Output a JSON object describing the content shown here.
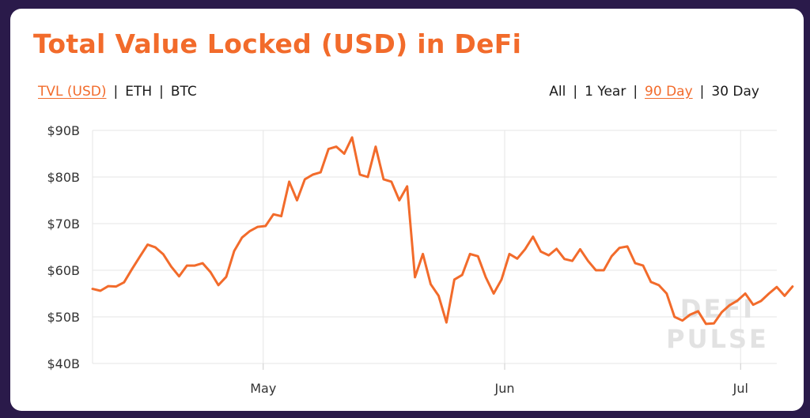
{
  "title": "Total Value Locked (USD) in DeFi",
  "metric_tabs": [
    {
      "label": "TVL (USD)",
      "active": true
    },
    {
      "label": "ETH",
      "active": false
    },
    {
      "label": "BTC",
      "active": false
    }
  ],
  "range_tabs": [
    {
      "label": "All",
      "active": false
    },
    {
      "label": "1 Year",
      "active": false
    },
    {
      "label": "90 Day",
      "active": true
    },
    {
      "label": "30 Day",
      "active": false
    }
  ],
  "watermark": {
    "line1": "DEFI",
    "line2": "PULSE"
  },
  "colors": {
    "accent": "#f26b2b",
    "background": "#2a1a4a",
    "grid": "#e6e6e6"
  },
  "chart_data": {
    "type": "line",
    "title": "Total Value Locked (USD) in DeFi",
    "xlabel": "",
    "ylabel": "",
    "ylim": [
      40,
      90
    ],
    "ytick_values": [
      40,
      50,
      60,
      70,
      80,
      90
    ],
    "ytick_labels": [
      "$40B",
      "$50B",
      "$60B",
      "$70B",
      "$80B",
      "$90B"
    ],
    "xlim": [
      0,
      87
    ],
    "xtick_positions": [
      21.7,
      52.4,
      82.4
    ],
    "xtick_labels": [
      "May",
      "Jun",
      "Jul"
    ],
    "grid": true,
    "legend": "none",
    "series": [
      {
        "values": [
          56.0,
          55.6,
          56.6,
          56.5,
          57.4,
          60.2,
          62.9,
          65.5,
          64.9,
          63.4,
          60.8,
          58.7,
          61.0,
          61.0,
          61.5,
          59.6,
          56.8,
          58.6,
          64.1,
          67.0,
          68.4,
          69.3,
          69.5,
          72.0,
          71.6,
          79.0,
          75.0,
          79.5,
          80.5,
          81.0,
          86.0,
          86.5,
          85.0,
          88.5,
          80.5,
          80.0,
          86.5,
          79.5,
          79.0,
          75.0,
          78.0,
          58.5,
          63.5,
          57.0,
          54.5,
          48.8,
          58.0,
          59.0,
          63.5,
          63.0,
          58.5,
          55.0,
          58.0,
          63.5,
          62.5,
          64.5,
          67.2,
          64.0,
          63.2,
          64.6,
          62.4,
          62.0,
          64.5,
          62.0,
          60.0,
          60.0,
          63.0,
          64.8,
          65.1,
          61.5,
          61.0,
          57.5,
          56.8,
          55.0,
          50.0,
          49.2,
          50.5,
          51.2,
          48.5,
          48.6,
          51.0,
          52.5,
          53.5,
          55.0,
          52.6,
          53.4,
          55.0,
          56.4,
          54.5,
          56.5
        ]
      }
    ]
  }
}
